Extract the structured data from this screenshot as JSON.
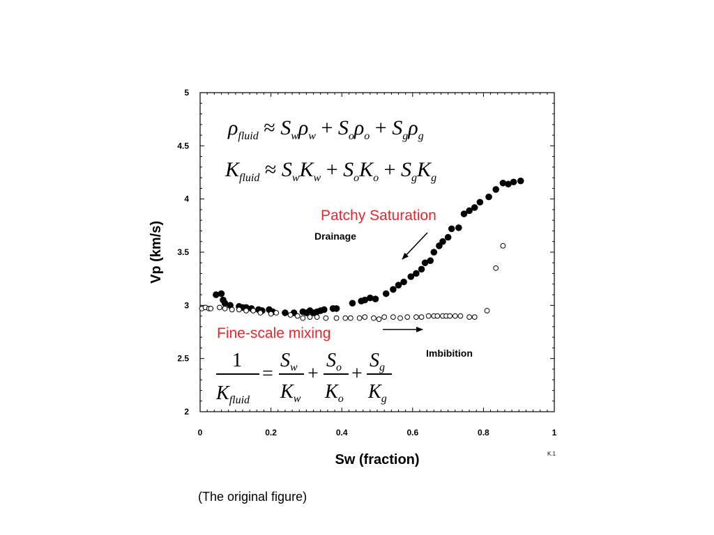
{
  "caption": "(The original figure)",
  "figure_id": "K.1",
  "annotations": {
    "patchy": "Patchy Saturation",
    "fine": "Fine-scale mixing",
    "drainage": "Drainage",
    "imbibition": "Imbibition"
  },
  "equations": {
    "rho": "ρ_fluid ≈ S_w ρ_w + S_o ρ_o + S_g ρ_g",
    "k": "K_fluid ≈ S_w K_w + S_o K_o + S_g K_g",
    "reuss": "1 / K_fluid = S_w / K_w + S_o / K_o + S_g / K_g"
  },
  "chart_data": {
    "type": "scatter",
    "xlabel": "Sw  (fraction)",
    "ylabel": "Vp (km/s)",
    "xlim": [
      0,
      1
    ],
    "ylim": [
      2,
      5
    ],
    "xticks": [
      0,
      0.2,
      0.4,
      0.6,
      0.8,
      1
    ],
    "xtick_labels": [
      "0",
      "0.2",
      "0.4",
      "0.6",
      "0.8",
      "1"
    ],
    "yticks": [
      2,
      2.5,
      3,
      3.5,
      4,
      4.5,
      5
    ],
    "ytick_labels": [
      "2",
      "2.5",
      "3",
      "3.5",
      "4",
      "4.5",
      "5"
    ],
    "grid": false,
    "series": [
      {
        "name": "Drainage",
        "marker": "filled-circle",
        "color": "#000000",
        "points": [
          [
            0.045,
            3.1
          ],
          [
            0.06,
            3.11
          ],
          [
            0.065,
            3.05
          ],
          [
            0.07,
            3.02
          ],
          [
            0.085,
            3.0
          ],
          [
            0.11,
            2.99
          ],
          [
            0.12,
            2.98
          ],
          [
            0.13,
            2.98
          ],
          [
            0.145,
            2.97
          ],
          [
            0.165,
            2.96
          ],
          [
            0.175,
            2.95
          ],
          [
            0.195,
            2.96
          ],
          [
            0.205,
            2.94
          ],
          [
            0.24,
            2.93
          ],
          [
            0.265,
            2.93
          ],
          [
            0.29,
            2.94
          ],
          [
            0.3,
            2.93
          ],
          [
            0.31,
            2.95
          ],
          [
            0.32,
            2.93
          ],
          [
            0.33,
            2.94
          ],
          [
            0.34,
            2.95
          ],
          [
            0.35,
            2.96
          ],
          [
            0.375,
            2.97
          ],
          [
            0.385,
            2.97
          ],
          [
            0.43,
            3.02
          ],
          [
            0.455,
            3.04
          ],
          [
            0.465,
            3.05
          ],
          [
            0.48,
            3.07
          ],
          [
            0.495,
            3.06
          ],
          [
            0.525,
            3.11
          ],
          [
            0.545,
            3.15
          ],
          [
            0.56,
            3.19
          ],
          [
            0.575,
            3.22
          ],
          [
            0.595,
            3.27
          ],
          [
            0.61,
            3.3
          ],
          [
            0.625,
            3.34
          ],
          [
            0.635,
            3.4
          ],
          [
            0.65,
            3.42
          ],
          [
            0.66,
            3.5
          ],
          [
            0.675,
            3.56
          ],
          [
            0.685,
            3.6
          ],
          [
            0.7,
            3.64
          ],
          [
            0.71,
            3.72
          ],
          [
            0.73,
            3.73
          ],
          [
            0.745,
            3.86
          ],
          [
            0.76,
            3.89
          ],
          [
            0.775,
            3.92
          ],
          [
            0.79,
            3.97
          ],
          [
            0.815,
            4.02
          ],
          [
            0.835,
            4.09
          ],
          [
            0.855,
            4.15
          ],
          [
            0.87,
            4.14
          ],
          [
            0.885,
            4.16
          ],
          [
            0.905,
            4.17
          ]
        ]
      },
      {
        "name": "Imbibition",
        "marker": "open-circle",
        "color": "#000000",
        "points": [
          [
            0.005,
            2.97
          ],
          [
            0.015,
            2.98
          ],
          [
            0.025,
            2.97
          ],
          [
            0.03,
            2.97
          ],
          [
            0.055,
            2.98
          ],
          [
            0.07,
            2.97
          ],
          [
            0.09,
            2.96
          ],
          [
            0.11,
            2.96
          ],
          [
            0.13,
            2.95
          ],
          [
            0.15,
            2.95
          ],
          [
            0.17,
            2.93
          ],
          [
            0.2,
            2.92
          ],
          [
            0.215,
            2.93
          ],
          [
            0.255,
            2.91
          ],
          [
            0.275,
            2.9
          ],
          [
            0.29,
            2.88
          ],
          [
            0.31,
            2.89
          ],
          [
            0.33,
            2.89
          ],
          [
            0.355,
            2.88
          ],
          [
            0.385,
            2.88
          ],
          [
            0.41,
            2.88
          ],
          [
            0.425,
            2.88
          ],
          [
            0.45,
            2.88
          ],
          [
            0.465,
            2.89
          ],
          [
            0.49,
            2.88
          ],
          [
            0.505,
            2.87
          ],
          [
            0.52,
            2.89
          ],
          [
            0.545,
            2.89
          ],
          [
            0.565,
            2.88
          ],
          [
            0.585,
            2.89
          ],
          [
            0.61,
            2.89
          ],
          [
            0.625,
            2.89
          ],
          [
            0.645,
            2.9
          ],
          [
            0.66,
            2.9
          ],
          [
            0.67,
            2.9
          ],
          [
            0.685,
            2.9
          ],
          [
            0.695,
            2.9
          ],
          [
            0.705,
            2.9
          ],
          [
            0.72,
            2.9
          ],
          [
            0.735,
            2.9
          ],
          [
            0.76,
            2.89
          ],
          [
            0.775,
            2.89
          ],
          [
            0.81,
            2.95
          ],
          [
            0.835,
            3.35
          ],
          [
            0.855,
            3.56
          ]
        ]
      }
    ]
  }
}
